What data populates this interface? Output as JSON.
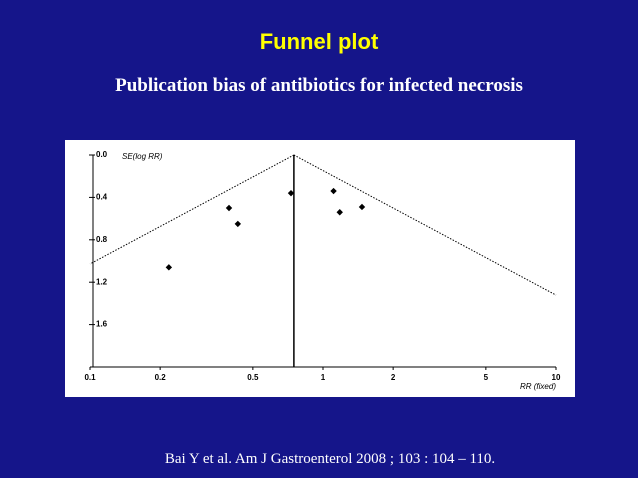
{
  "title": "Funnel plot",
  "subtitle": "Publication bias of antibiotics for infected necrosis",
  "citation": "Bai Y et al. Am J Gastroenterol 2008 ; 103 : 104 – 110.",
  "chart_data": {
    "type": "scatter",
    "x_label": "RR (fixed)",
    "y_label": "SE(log RR)",
    "x": [
      0.218,
      0.395,
      0.431,
      0.729,
      1.11,
      1.18,
      1.47
    ],
    "values": [
      1.06,
      0.5,
      0.65,
      0.36,
      0.34,
      0.54,
      0.49
    ],
    "color": "#000000",
    "pooled_rr": 0.75,
    "x_log": true,
    "y_inverted": true,
    "xlim": [
      0.1,
      10
    ],
    "ylim": [
      0,
      2
    ],
    "xticks": [
      0.1,
      0.2,
      0.5,
      1,
      2,
      5,
      10
    ],
    "yticks": [
      {
        "value": 0,
        "label": "0.0"
      },
      0.4,
      0.8,
      1.2,
      1.6
    ]
  }
}
